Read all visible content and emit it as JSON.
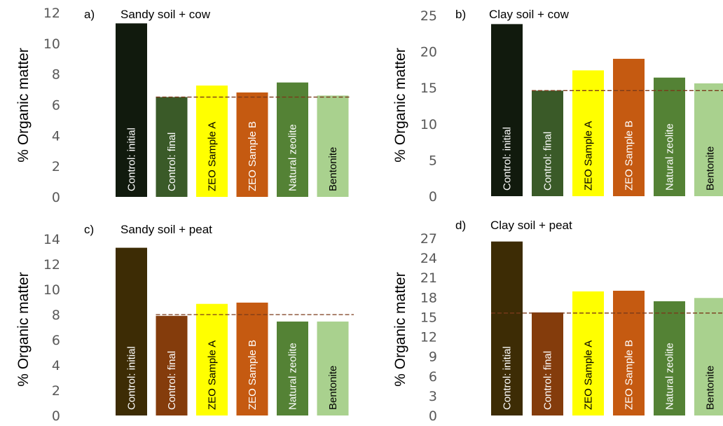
{
  "chart_data": [
    {
      "type": "bar",
      "panel_label": "a)",
      "title": "Sandy soil + cow",
      "ylabel": "% Organic matter",
      "ylim": [
        0,
        12
      ],
      "yticks": [
        "0",
        "2",
        "4",
        "6",
        "8",
        "10",
        "12"
      ],
      "categories": [
        "Control: initial",
        "Control: final",
        "ZEO Sample A",
        "ZEO Sample B",
        "Natural zeolite",
        "Bentonite"
      ],
      "values": [
        11.3,
        6.5,
        7.25,
        6.8,
        7.45,
        6.6
      ],
      "reference_line": 6.5,
      "colors": [
        "#111a0d",
        "#3a5a28",
        "#ffff00",
        "#c55a11",
        "#548235",
        "#a9d18e"
      ]
    },
    {
      "type": "bar",
      "panel_label": "b)",
      "title": "Clay soil + cow",
      "ylabel": "% Organic matter",
      "ylim": [
        0,
        25
      ],
      "yticks": [
        "0",
        "5",
        "10",
        "15",
        "20",
        "25"
      ],
      "categories": [
        "Control: initial",
        "Control: final",
        "ZEO Sample A",
        "ZEO Sample B",
        "Natural zeolite",
        "Bentonite"
      ],
      "values": [
        23.8,
        14.6,
        17.4,
        19.0,
        16.4,
        15.6
      ],
      "reference_line": 14.6,
      "colors": [
        "#111a0d",
        "#3a5a28",
        "#ffff00",
        "#c55a11",
        "#548235",
        "#a9d18e"
      ]
    },
    {
      "type": "bar",
      "panel_label": "c)",
      "title": "Sandy soil + peat",
      "ylabel": "% Organic matter",
      "ylim": [
        0,
        14
      ],
      "yticks": [
        "0",
        "2",
        "4",
        "6",
        "8",
        "10",
        "12",
        "14"
      ],
      "categories": [
        "Control: initial",
        "Control: final",
        "ZEO Sample A",
        "ZEO Sample B",
        "Natural zeolite",
        "Bentonite"
      ],
      "values": [
        13.3,
        7.9,
        8.85,
        8.95,
        7.45,
        7.45
      ],
      "reference_line": 8.0,
      "colors": [
        "#3d2c05",
        "#843c0c",
        "#ffff00",
        "#c55a11",
        "#548235",
        "#a9d18e"
      ]
    },
    {
      "type": "bar",
      "panel_label": "d)",
      "title": "Clay soil + peat",
      "ylabel": "% Organic matter",
      "ylim": [
        0,
        27
      ],
      "yticks": [
        "0",
        "3",
        "6",
        "9",
        "12",
        "15",
        "18",
        "21",
        "24",
        "27"
      ],
      "categories": [
        "Control: initial",
        "Control: final",
        "ZEO Sample A",
        "ZEO Sample B",
        "Natural zeolite",
        "Bentonite"
      ],
      "values": [
        26.5,
        15.7,
        18.9,
        19.0,
        17.4,
        17.9
      ],
      "reference_line": 15.6,
      "colors": [
        "#3d2c05",
        "#843c0c",
        "#ffff00",
        "#c55a11",
        "#548235",
        "#a9d18e"
      ]
    }
  ]
}
